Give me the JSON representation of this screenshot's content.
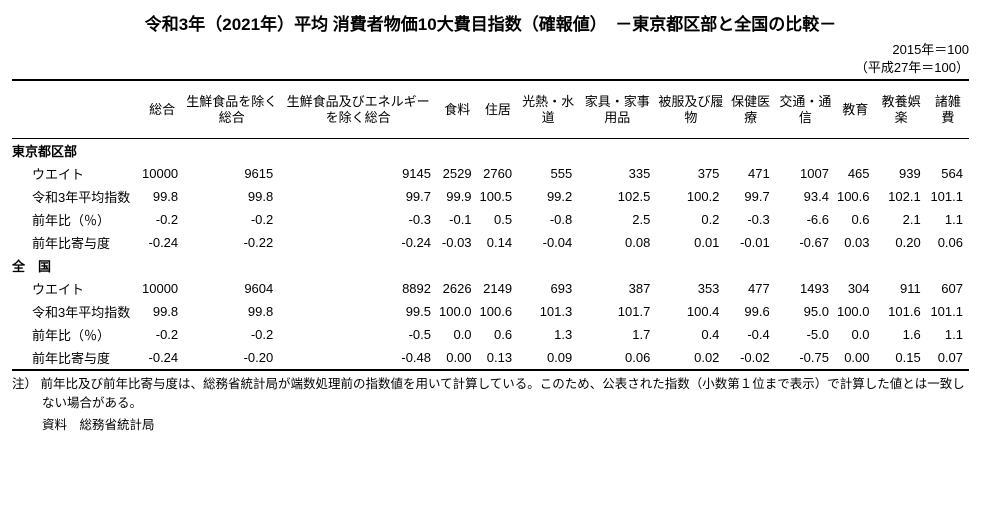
{
  "title": "令和3年（2021年）平均 消費者物価10大費目指数（確報値）　－東京都区部と全国の比較－",
  "base_year_1": "2015年＝100",
  "base_year_2": "（平成27年＝100）",
  "columns": [
    "総合",
    "生鮮食品を除く総合",
    "生鮮食品及びエネルギーを除く総合",
    "食料",
    "住居",
    "光熱・水道",
    "家具・家事用品",
    "被服及び履物",
    "保健医療",
    "交通・通信",
    "教育",
    "教養娯楽",
    "諸雑費"
  ],
  "sections": [
    {
      "name": "東京都区部",
      "rows": [
        {
          "label": "ウエイト",
          "vals": [
            "10000",
            "9615",
            "9145",
            "2529",
            "2760",
            "555",
            "335",
            "375",
            "471",
            "1007",
            "465",
            "939",
            "564"
          ]
        },
        {
          "label": "令和3年平均指数",
          "vals": [
            "99.8",
            "99.8",
            "99.7",
            "99.9",
            "100.5",
            "99.2",
            "102.5",
            "100.2",
            "99.7",
            "93.4",
            "100.6",
            "102.1",
            "101.1"
          ]
        },
        {
          "label": "前年比（％）",
          "vals": [
            "-0.2",
            "-0.2",
            "-0.3",
            "-0.1",
            "0.5",
            "-0.8",
            "2.5",
            "0.2",
            "-0.3",
            "-6.6",
            "0.6",
            "2.1",
            "1.1"
          ]
        },
        {
          "label": "前年比寄与度",
          "vals": [
            "-0.24",
            "-0.22",
            "-0.24",
            "-0.03",
            "0.14",
            "-0.04",
            "0.08",
            "0.01",
            "-0.01",
            "-0.67",
            "0.03",
            "0.20",
            "0.06"
          ]
        }
      ]
    },
    {
      "name": "全　国",
      "rows": [
        {
          "label": "ウエイト",
          "vals": [
            "10000",
            "9604",
            "8892",
            "2626",
            "2149",
            "693",
            "387",
            "353",
            "477",
            "1493",
            "304",
            "911",
            "607"
          ]
        },
        {
          "label": "令和3年平均指数",
          "vals": [
            "99.8",
            "99.8",
            "99.5",
            "100.0",
            "100.6",
            "101.3",
            "101.7",
            "100.4",
            "99.6",
            "95.0",
            "100.0",
            "101.6",
            "101.1"
          ]
        },
        {
          "label": "前年比（％）",
          "vals": [
            "-0.2",
            "-0.2",
            "-0.5",
            "0.0",
            "0.6",
            "1.3",
            "1.7",
            "0.4",
            "-0.4",
            "-5.0",
            "0.0",
            "1.6",
            "1.1"
          ]
        },
        {
          "label": "前年比寄与度",
          "vals": [
            "-0.24",
            "-0.20",
            "-0.48",
            "0.00",
            "0.13",
            "0.09",
            "0.06",
            "0.02",
            "-0.02",
            "-0.75",
            "0.00",
            "0.15",
            "0.07"
          ]
        }
      ]
    }
  ],
  "footnote": "注） 前年比及び前年比寄与度は、総務省統計局が端数処理前の指数値を用いて計算している。このため、公表された指数（小数第１位まで表示）で計算した値とは一致しない場合がある。",
  "source": "資料　総務省統計局"
}
